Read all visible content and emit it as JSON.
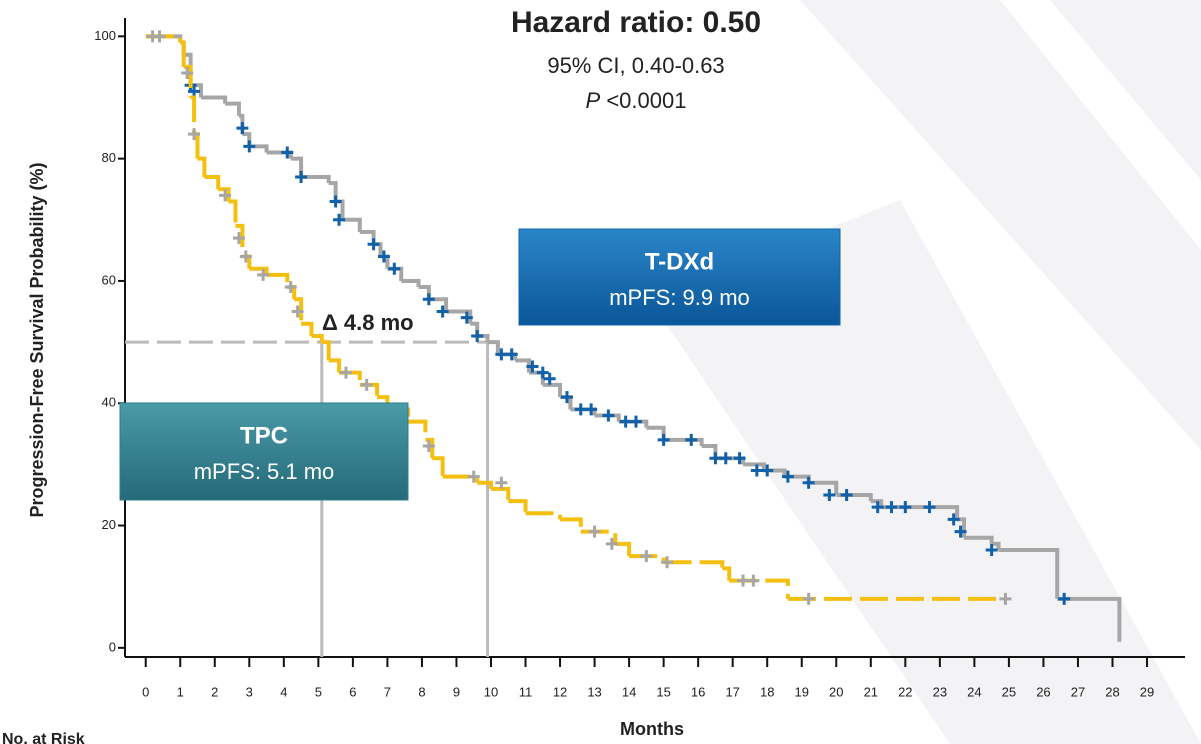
{
  "chart_data": {
    "type": "km",
    "title": "Hazard ratio: 0.50",
    "subtitle": [
      "95% CI, 0.40-0.63",
      "P",
      "<0.0001"
    ],
    "x_label": "Months",
    "y_label": "Progression-Free Survival Probability (%)",
    "footer": "No. at Risk",
    "annotation": "Δ 4.8 mo",
    "median_level": 50,
    "xlim": [
      -0.6,
      30.1
    ],
    "ylim": [
      -1.5,
      103
    ],
    "xticks": [
      0,
      1,
      2,
      3,
      4,
      5,
      6,
      7,
      8,
      9,
      10,
      11,
      12,
      13,
      14,
      15,
      16,
      17,
      18,
      19,
      20,
      21,
      22,
      23,
      24,
      25,
      26,
      27,
      28,
      29
    ],
    "yticks": [
      0,
      20,
      40,
      60,
      80,
      100
    ],
    "series": [
      {
        "name": "T-DXd",
        "label": "mPFS: 9.9 mo",
        "median": 9.9,
        "color": "#a6a6a6",
        "censor_color": "#1060aa",
        "box_color": "#0e66ae",
        "x": [
          0,
          1.0,
          1.1,
          1.3,
          1.6,
          2.3,
          2.7,
          2.8,
          3.0,
          3.5,
          4.2,
          4.5,
          5.3,
          5.5,
          5.7,
          6.2,
          6.6,
          6.8,
          7.0,
          7.4,
          7.9,
          8.2,
          8.7,
          9.4,
          9.6,
          9.9,
          10.2,
          10.7,
          11.1,
          11.5,
          12.0,
          12.3,
          13.0,
          13.7,
          14.5,
          15.0,
          16.1,
          16.5,
          17.3,
          17.9,
          18.5,
          19.2,
          20.0,
          21.0,
          21.3,
          23.5,
          23.7,
          24.5,
          24.7,
          26.4,
          28.2
        ],
        "values": [
          100,
          99,
          97,
          92,
          90,
          89,
          87,
          84,
          82,
          81,
          80,
          77,
          76,
          73,
          70,
          68,
          66,
          64,
          62,
          60,
          59,
          57,
          55,
          53,
          51,
          50,
          48,
          47,
          45,
          43,
          41,
          39,
          38,
          37,
          36,
          34,
          33,
          31,
          30,
          29,
          28,
          27,
          25,
          24,
          23,
          21,
          18,
          17,
          16,
          8,
          1
        ],
        "censor_x": [
          1.3,
          1.4,
          2.8,
          3.0,
          4.1,
          4.5,
          5.5,
          5.6,
          6.6,
          6.9,
          7.2,
          8.2,
          8.6,
          9.3,
          9.6,
          10.3,
          10.6,
          11.2,
          11.5,
          11.7,
          12.2,
          12.6,
          12.9,
          13.4,
          13.9,
          14.2,
          15.0,
          15.8,
          16.5,
          16.8,
          17.2,
          17.7,
          18.0,
          18.6,
          19.2,
          19.8,
          20.3,
          21.2,
          21.6,
          22.0,
          22.7,
          23.4,
          23.6,
          24.5,
          26.6
        ],
        "censor_y": [
          92,
          91,
          85,
          82,
          81,
          77,
          73,
          70,
          66,
          64,
          62,
          57,
          55,
          54,
          51,
          48,
          48,
          46,
          45,
          44,
          41,
          39,
          39,
          38,
          37,
          37,
          34,
          34,
          31,
          31,
          31,
          29,
          29,
          28,
          27,
          25,
          25,
          23,
          23,
          23,
          23,
          21,
          19,
          16,
          8
        ]
      },
      {
        "name": "TPC",
        "label": "mPFS: 5.1 mo",
        "median": 5.1,
        "color": "#f5bf10",
        "censor_color": "#a6a6a6",
        "box_color": "#2f7d8c",
        "dashed": true,
        "x": [
          0,
          1.0,
          1.1,
          1.3,
          1.4,
          1.5,
          1.7,
          2.1,
          2.4,
          2.6,
          2.8,
          3.0,
          3.5,
          4.1,
          4.3,
          4.5,
          4.8,
          5.1,
          5.3,
          5.6,
          6.2,
          6.7,
          7.0,
          7.6,
          8.1,
          8.3,
          8.6,
          9.6,
          10.0,
          10.5,
          11.0,
          12.0,
          12.6,
          13.6,
          14.0,
          15.0,
          16.7,
          16.9,
          18.6,
          24.9
        ],
        "values": [
          100,
          99,
          95,
          90,
          84,
          80,
          77,
          75,
          73,
          69,
          64,
          62,
          61,
          59,
          57,
          53,
          51,
          50,
          47,
          45,
          43,
          41,
          39,
          37,
          34,
          31,
          28,
          27,
          26,
          24,
          22,
          21,
          19,
          17,
          15,
          14,
          13,
          11,
          8,
          8
        ],
        "censor_x": [
          0.2,
          0.4,
          1.2,
          1.4,
          2.3,
          2.7,
          2.9,
          3.4,
          4.2,
          4.4,
          5.8,
          6.4,
          8.2,
          9.5,
          10.3,
          13.0,
          13.5,
          14.5,
          15.1,
          17.3,
          17.6,
          19.2,
          24.9
        ],
        "censor_y": [
          100,
          100,
          94,
          84,
          74,
          67,
          64,
          61,
          59,
          55,
          45,
          43,
          33,
          28,
          27,
          19,
          17,
          15,
          14,
          11,
          11,
          8,
          8
        ]
      }
    ]
  }
}
